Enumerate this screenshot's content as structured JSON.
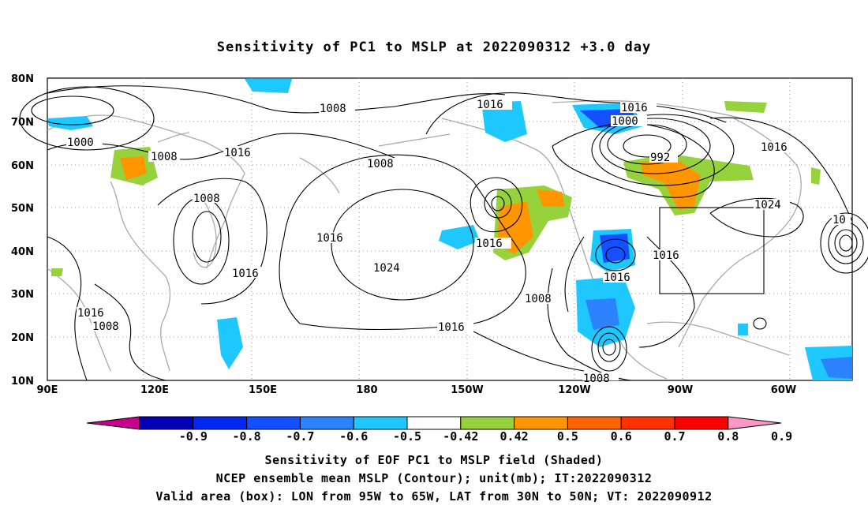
{
  "title": "Sensitivity of PC1 to MSLP at 2022090312 +3.0 day",
  "lat_labels": [
    "80N",
    "70N",
    "60N",
    "50N",
    "40N",
    "30N",
    "20N",
    "10N"
  ],
  "lon_labels": [
    "90E",
    "120E",
    "150E",
    "180",
    "150W",
    "120W",
    "90W",
    "60W"
  ],
  "contour_labels": [
    "1008",
    "1016",
    "1008",
    "1016",
    "1000",
    "1008",
    "1008",
    "1016",
    "1016",
    "1024",
    "1016",
    "1008",
    "1016",
    "1008",
    "1016",
    "1008",
    "1016",
    "1000",
    "992",
    "1016",
    "1024",
    "1016",
    "1016",
    "1008",
    "10"
  ],
  "colorbar": {
    "labels": [
      "-0.9",
      "-0.8",
      "-0.7",
      "-0.6",
      "-0.5",
      "-0.42",
      "0.42",
      "0.5",
      "0.6",
      "0.7",
      "0.8",
      "0.9"
    ],
    "colors": [
      "#c8008c",
      "#0000b4",
      "#0028f0",
      "#1450ff",
      "#2d82ff",
      "#1ec8ff",
      "#ffffff",
      "#96d23c",
      "#ff9600",
      "#ff6400",
      "#ff3200",
      "#ff0000",
      "#ff96c8"
    ]
  },
  "captions": [
    "Sensitivity of EOF PC1 to MSLP field (Shaded)",
    "NCEP ensemble mean MSLP (Contour); unit(mb); IT:2022090312",
    "Valid area (box): LON from 95W to 65W, LAT from 30N to 50N; VT: 2022090912"
  ]
}
